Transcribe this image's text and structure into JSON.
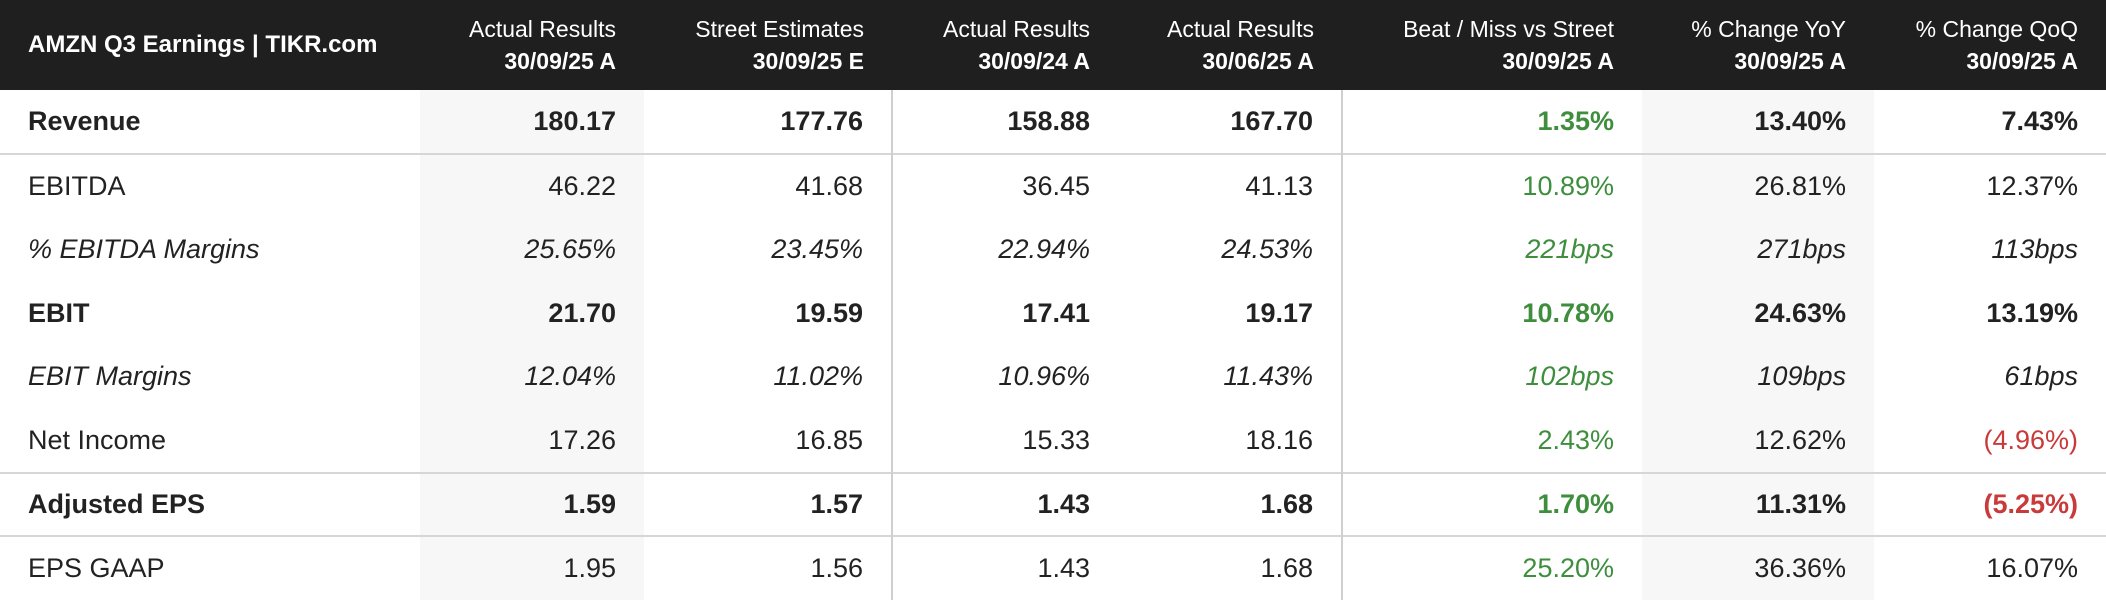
{
  "chart_data": {
    "type": "table",
    "title": "AMZN Q3 Earnings | TIKR.com",
    "columns": [
      {
        "name": "Actual Results",
        "date": "30/09/25 A"
      },
      {
        "name": "Street Estimates",
        "date": "30/09/25 E"
      },
      {
        "name": "Actual Results",
        "date": "30/09/24 A"
      },
      {
        "name": "Actual Results",
        "date": "30/06/25 A"
      },
      {
        "name": "Beat / Miss vs Street",
        "date": "30/09/25 A"
      },
      {
        "name": "% Change YoY",
        "date": "30/09/25 A"
      },
      {
        "name": "% Change QoQ",
        "date": "30/09/25 A"
      }
    ],
    "rows": [
      {
        "label": "Revenue",
        "values": [
          "180.17",
          "177.76",
          "158.88",
          "167.70",
          "1.35%",
          "13.40%",
          "7.43%"
        ]
      },
      {
        "label": "EBITDA",
        "values": [
          "46.22",
          "41.68",
          "36.45",
          "41.13",
          "10.89%",
          "26.81%",
          "12.37%"
        ]
      },
      {
        "label": "% EBITDA Margins",
        "values": [
          "25.65%",
          "23.45%",
          "22.94%",
          "24.53%",
          "221bps",
          "271bps",
          "113bps"
        ]
      },
      {
        "label": "EBIT",
        "values": [
          "21.70",
          "19.59",
          "17.41",
          "19.17",
          "10.78%",
          "24.63%",
          "13.19%"
        ]
      },
      {
        "label": "EBIT Margins",
        "values": [
          "12.04%",
          "11.02%",
          "10.96%",
          "11.43%",
          "102bps",
          "109bps",
          "61bps"
        ]
      },
      {
        "label": "Net Income",
        "values": [
          "17.26",
          "16.85",
          "15.33",
          "18.16",
          "2.43%",
          "12.62%",
          "(4.96%)"
        ]
      },
      {
        "label": "Adjusted EPS",
        "values": [
          "1.59",
          "1.57",
          "1.43",
          "1.68",
          "1.70%",
          "11.31%",
          "(5.25%)"
        ]
      },
      {
        "label": "EPS GAAP",
        "values": [
          "1.95",
          "1.56",
          "1.43",
          "1.68",
          "25.20%",
          "36.36%",
          "16.07%"
        ]
      }
    ]
  },
  "colors": {
    "header_bg": "#1f1f1f",
    "positive": "#3e8e3e",
    "negative": "#c93a3a",
    "shade": "#f7f7f7"
  }
}
